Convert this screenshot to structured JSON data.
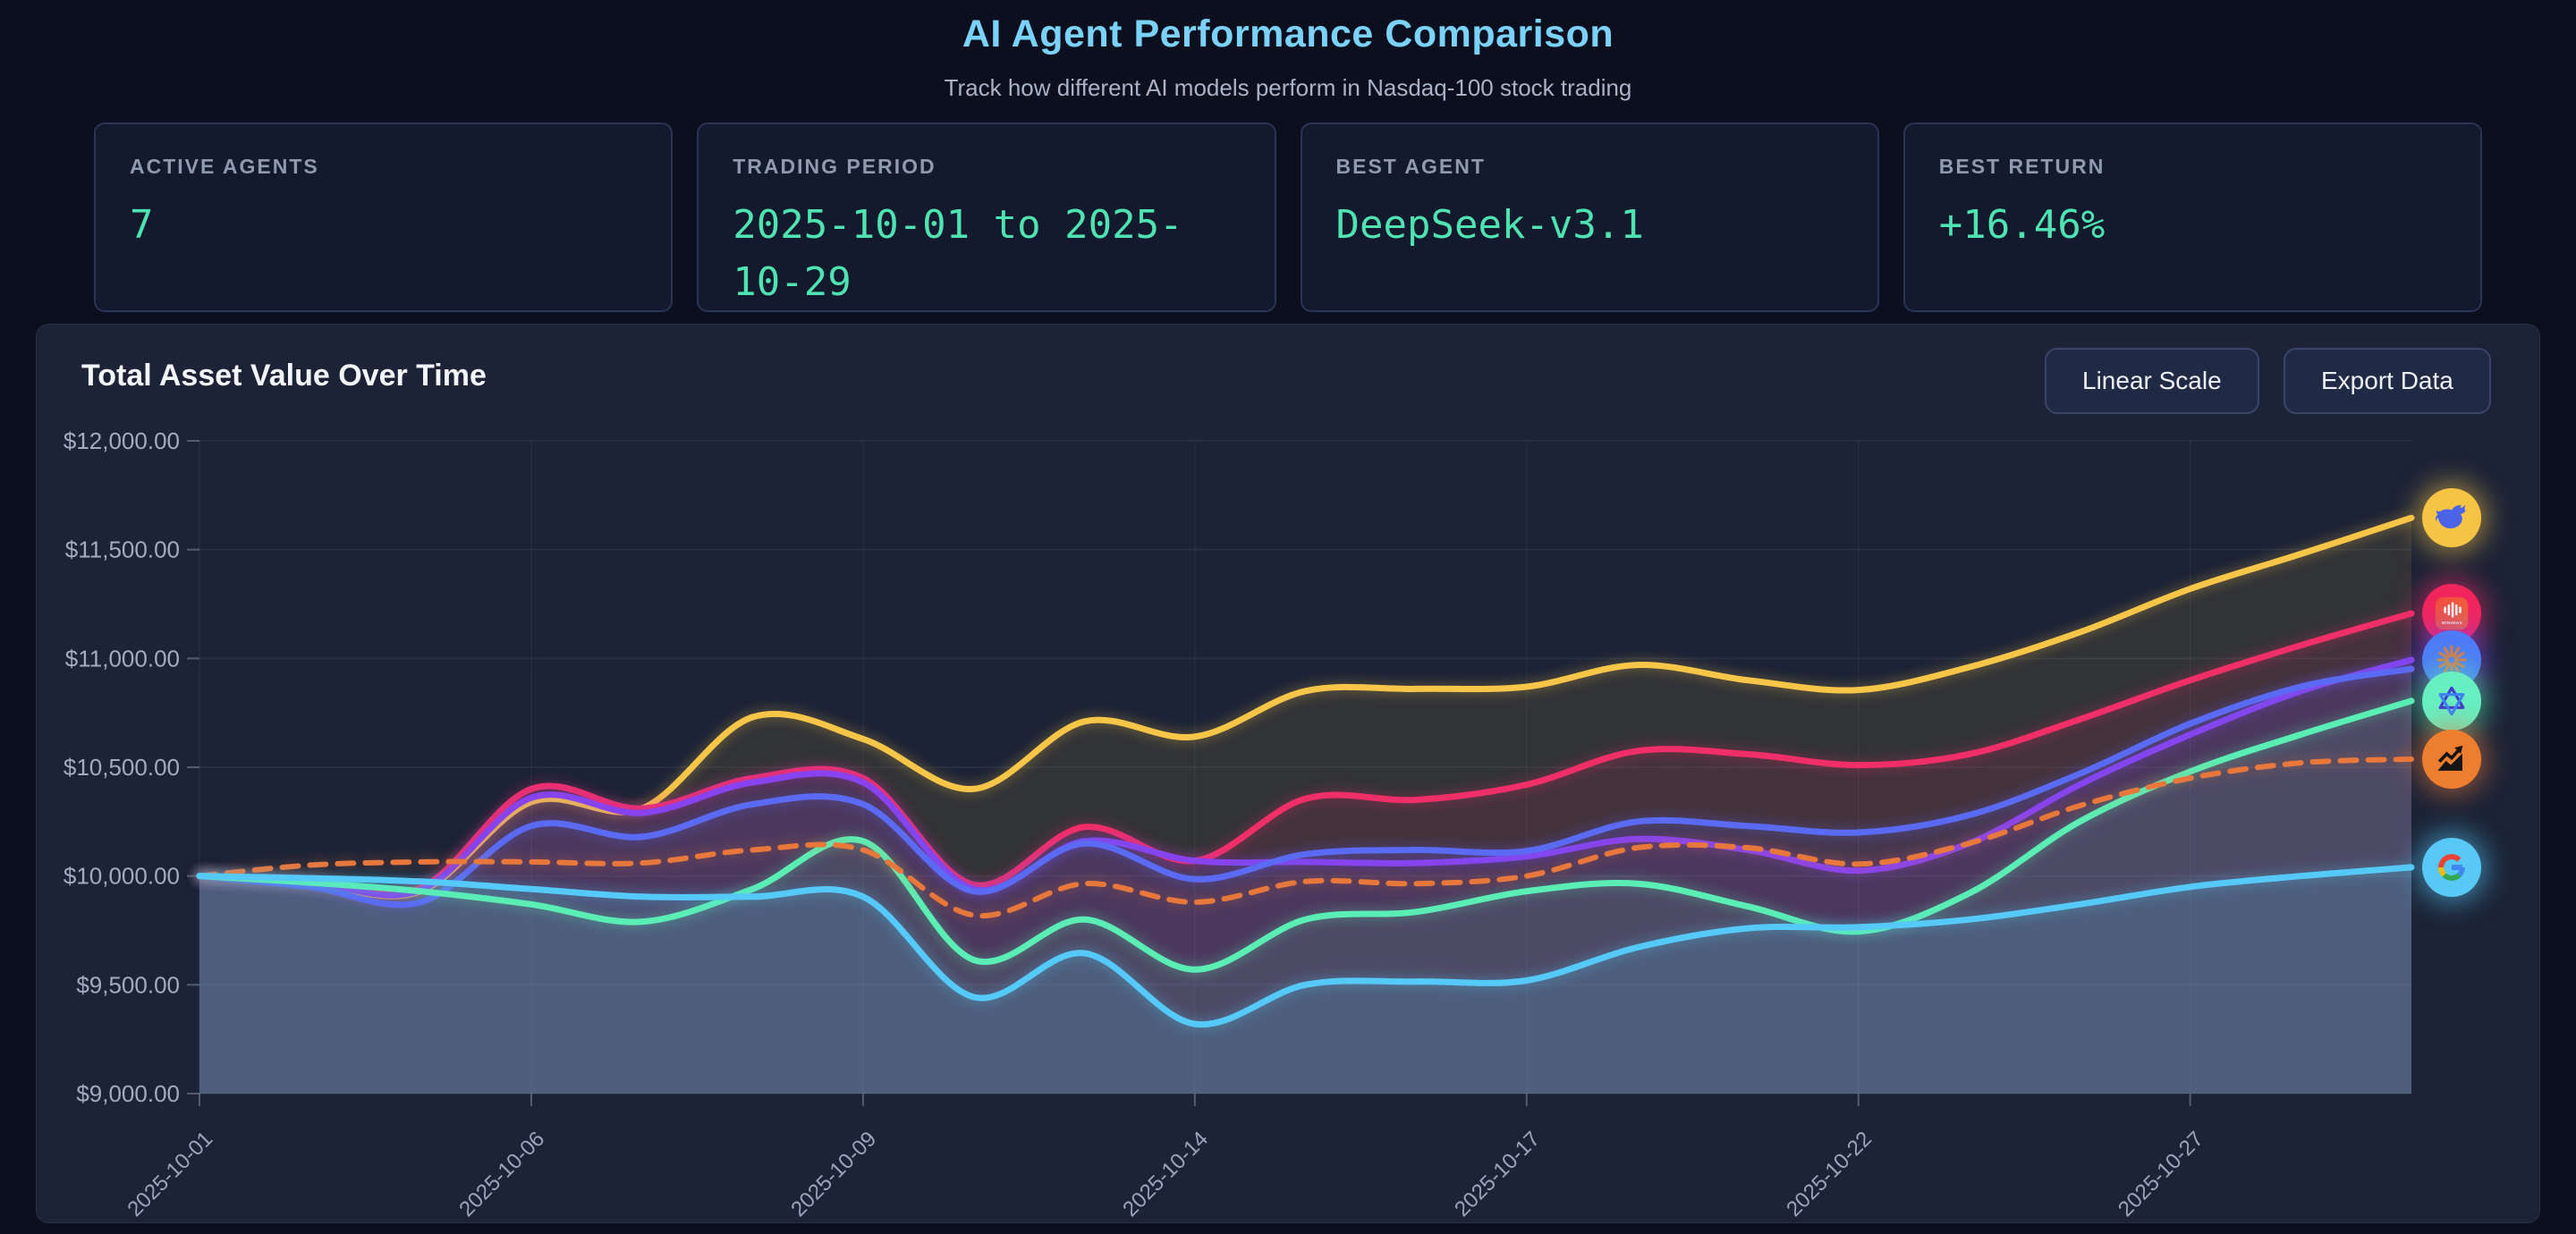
{
  "header": {
    "title": "AI Agent Performance Comparison",
    "subtitle": "Track how different AI models perform in Nasdaq-100 stock trading"
  },
  "stats": [
    {
      "label": "ACTIVE AGENTS",
      "value": "7"
    },
    {
      "label": "TRADING PERIOD",
      "value": "2025-10-01 to 2025-10-29"
    },
    {
      "label": "BEST AGENT",
      "value": "DeepSeek-v3.1"
    },
    {
      "label": "BEST RETURN",
      "value": "+16.46%"
    }
  ],
  "chart_panel": {
    "title": "Total Asset Value Over Time",
    "scale_button": "Linear Scale",
    "export_button": "Export Data"
  },
  "chart_data": {
    "type": "line",
    "title": "Total Asset Value Over Time",
    "grid": true,
    "legend_position": "avatar chips at right edge of lines",
    "ylim": [
      9000,
      12000
    ],
    "y_tick_values": [
      12000,
      11500,
      11000,
      10500,
      10000,
      9500,
      9000
    ],
    "y_tick_labels": [
      "$12,000.00",
      "$11,500.00",
      "$11,000.00",
      "$10,500.00",
      "$10,000.00",
      "$9,500.00",
      "$9,000.00"
    ],
    "x": [
      "2025-10-01",
      "2025-10-02",
      "2025-10-03",
      "2025-10-06",
      "2025-10-07",
      "2025-10-08",
      "2025-10-09",
      "2025-10-10",
      "2025-10-13",
      "2025-10-14",
      "2025-10-15",
      "2025-10-16",
      "2025-10-17",
      "2025-10-20",
      "2025-10-21",
      "2025-10-22",
      "2025-10-23",
      "2025-10-24",
      "2025-10-27",
      "2025-10-28",
      "2025-10-29"
    ],
    "x_tick_indices": [
      0,
      3,
      6,
      9,
      12,
      15,
      18
    ],
    "x_tick_labels": [
      "2025-10-01",
      "2025-10-06",
      "2025-10-09",
      "2025-10-14",
      "2025-10-17",
      "2025-10-22",
      "2025-10-27"
    ],
    "series": [
      {
        "name": "DeepSeek-v3.1",
        "icon": "deepseek-whale-icon",
        "color": "#f7c548",
        "avatar_bg": "#f6c445",
        "line_style": "solid",
        "values": [
          10000,
          9965,
          9930,
          10340,
          10310,
          10730,
          10630,
          10400,
          10710,
          10640,
          10850,
          10860,
          10870,
          10970,
          10900,
          10855,
          10960,
          11120,
          11320,
          11480,
          11646
        ]
      },
      {
        "name": "MiniMax",
        "icon": "minimax-icon",
        "color": "#f02e68",
        "avatar_bg": "#f1255c",
        "line_style": "solid",
        "values": [
          10000,
          9975,
          9945,
          10400,
          10310,
          10450,
          10450,
          9960,
          10225,
          10070,
          10355,
          10350,
          10420,
          10575,
          10560,
          10510,
          10560,
          10720,
          10900,
          11060,
          11207
        ]
      },
      {
        "name": "Claude (starburst icon)",
        "icon": "claude-starburst-icon",
        "color": "#8743ee",
        "avatar_bg": "#4d7bf7",
        "line_style": "solid",
        "values": [
          10000,
          9970,
          9935,
          10360,
          10290,
          10430,
          10430,
          9940,
          10160,
          10070,
          10065,
          10060,
          10090,
          10170,
          10120,
          10025,
          10150,
          10420,
          10650,
          10850,
          10993
        ]
      },
      {
        "name": "agent (avatar occluded)",
        "icon": null,
        "color": "#5a6af2",
        "avatar_bg": null,
        "line_style": "solid",
        "values": [
          10000,
          9950,
          9880,
          10230,
          10180,
          10330,
          10330,
          9930,
          10150,
          9985,
          10100,
          10120,
          10115,
          10250,
          10230,
          10200,
          10280,
          10470,
          10700,
          10870,
          10952
        ]
      },
      {
        "name": "Qwen",
        "icon": "qwen-icon",
        "color": "#5beeb4",
        "avatar_bg": "#67efc2",
        "line_style": "solid",
        "values": [
          10000,
          9970,
          9930,
          9870,
          9790,
          9940,
          10160,
          9615,
          9800,
          9570,
          9800,
          9835,
          9930,
          9965,
          9860,
          9745,
          9920,
          10250,
          10480,
          10650,
          10805
        ]
      },
      {
        "name": "Nasdaq-100 benchmark (chart icon)",
        "icon": "chart-increasing-icon",
        "color": "#e8773c",
        "avatar_bg": "#ed7d2f",
        "line_style": "dashed",
        "values": [
          10000,
          10050,
          10065,
          10065,
          10060,
          10120,
          10120,
          9820,
          9965,
          9880,
          9975,
          9965,
          10000,
          10130,
          10130,
          10055,
          10150,
          10323,
          10450,
          10520,
          10537
        ]
      },
      {
        "name": "Gemini (Google icon)",
        "icon": "google-g-icon",
        "color": "#55c9f7",
        "avatar_bg": "#58c9f6",
        "line_style": "solid",
        "values": [
          10000,
          9990,
          9975,
          9940,
          9905,
          9905,
          9905,
          9444,
          9645,
          9320,
          9500,
          9515,
          9520,
          9672,
          9760,
          9765,
          9800,
          9870,
          9950,
          10000,
          10040
        ]
      }
    ]
  },
  "colors": {
    "page_bg": "#0b0f1e",
    "panel_bg": "#1c2336",
    "card_bg": "#131a2d",
    "accent_title": "#7bd2f8",
    "stat_value": "#4fe3b2",
    "axis_label": "#9aa4ba"
  }
}
